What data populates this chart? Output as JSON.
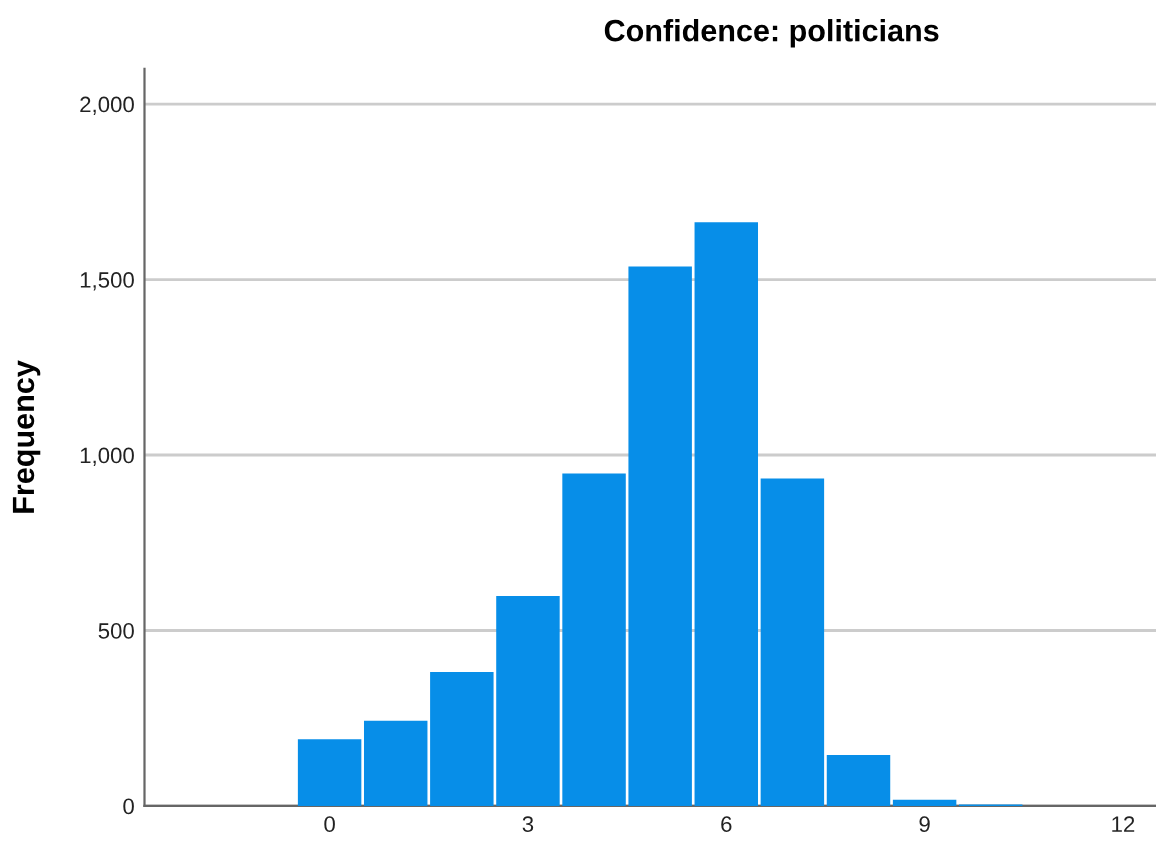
{
  "chart_data": {
    "type": "histogram",
    "title": "Confidence: politicians",
    "ylabel": "Frequency",
    "bins": [
      -0.5,
      0.5,
      1.5,
      2.5,
      3.5,
      4.5,
      5.5,
      6.5,
      7.5,
      8.5,
      9.5,
      10.5
    ],
    "values": [
      190,
      243,
      382,
      598,
      947,
      1537,
      1663,
      933,
      145,
      18,
      4
    ],
    "color": "#078ee8",
    "xlim": [
      -2.8,
      12.5
    ],
    "xticks": [
      0,
      3,
      6,
      9,
      12
    ],
    "ylim": [
      0,
      2100
    ],
    "yticks": [
      {
        "value": 0,
        "label": "0"
      },
      {
        "value": 500,
        "label": "500"
      },
      {
        "value": 1000,
        "label": "1,000"
      },
      {
        "value": 1500,
        "label": "1,500"
      },
      {
        "value": 2000,
        "label": "2,000"
      }
    ],
    "grid": "y"
  }
}
